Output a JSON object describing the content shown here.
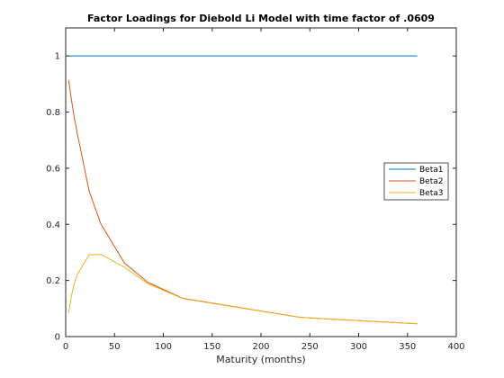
{
  "chart_data": {
    "type": "line",
    "title": "Factor Loadings for Diebold Li Model with time factor of .0609",
    "subtitle": "",
    "xlabel": "Maturity (months)",
    "ylabel": "",
    "xlim": [
      0,
      400
    ],
    "ylim": [
      0,
      1.1
    ],
    "xticks": [
      0,
      50,
      100,
      150,
      200,
      250,
      300,
      350,
      400
    ],
    "yticks": [
      0,
      0.2,
      0.4,
      0.6,
      0.8,
      1
    ],
    "grid": false,
    "legend_position": "right",
    "series": [
      {
        "name": "Beta1",
        "color": "#0072bd",
        "x": [
          3,
          360
        ],
        "y": [
          1,
          1
        ]
      },
      {
        "name": "Beta2",
        "color": "#d95319",
        "x": [
          3,
          6,
          9,
          12,
          24,
          36,
          60,
          84,
          120,
          240,
          360
        ],
        "y": [
          0.9138,
          0.8405,
          0.7767,
          0.7218,
          0.5185,
          0.4015,
          0.263,
          0.1936,
          0.1362,
          0.0684,
          0.0456
        ]
      },
      {
        "name": "Beta3",
        "color": "#edb120",
        "x": [
          3,
          6,
          9,
          12,
          24,
          36,
          60,
          84,
          120,
          240,
          360
        ],
        "y": [
          0.0844,
          0.1472,
          0.1919,
          0.2216,
          0.2917,
          0.2927,
          0.2477,
          0.1888,
          0.1353,
          0.0684,
          0.0456
        ]
      }
    ]
  }
}
